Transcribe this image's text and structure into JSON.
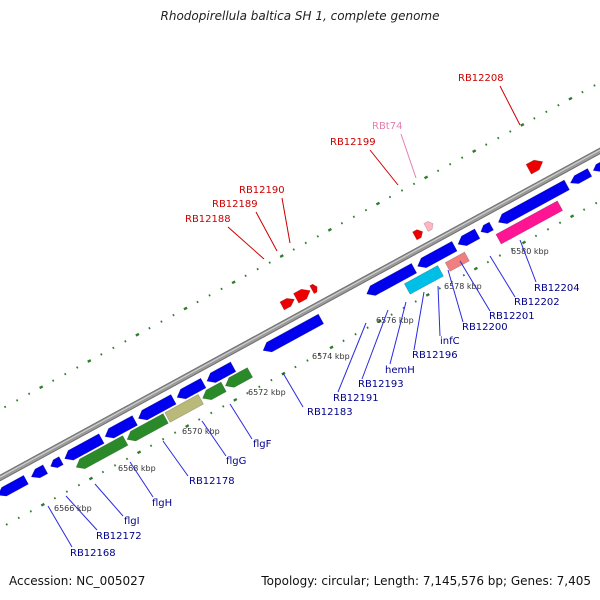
{
  "title": "Rhodopirellula baltica SH 1, complete genome",
  "footer": {
    "accession": "Accession: NC_005027",
    "stats": "Topology: circular; Length: 7,145,576 bp; Genes: 7,405"
  },
  "colors": {
    "backbone": "#9a9a9a",
    "dots": "#2e7d2e",
    "label_forward": "#cc0000",
    "label_reverse": "#00008b",
    "label_rna": "#e37fb0",
    "leader": "#2a2ae0",
    "leader_red": "#cc0000",
    "gene_blue": "#0000ee",
    "gene_green": "#2a8a2a",
    "gene_tan": "#b9b97a",
    "gene_red": "#ee0000",
    "gene_pink": "#ff1493",
    "gene_lightpink": "#ffb6c1",
    "gene_cyan": "#00bfe6",
    "gene_salmon": "#f08080"
  },
  "ticks": [
    {
      "label": "6566 kbp"
    },
    {
      "label": "6568 kbp"
    },
    {
      "label": "6570 kbp"
    },
    {
      "label": "6572 kbp"
    },
    {
      "label": "6574 kbp"
    },
    {
      "label": "6576 kbp"
    },
    {
      "label": "6578 kbp"
    },
    {
      "label": "6580 kbp"
    }
  ],
  "labels": [
    {
      "text": "RB12208",
      "kind": "forward"
    },
    {
      "text": "RBt74",
      "kind": "rna"
    },
    {
      "text": "RB12199",
      "kind": "forward"
    },
    {
      "text": "RB12190",
      "kind": "forward"
    },
    {
      "text": "RB12189",
      "kind": "forward"
    },
    {
      "text": "RB12188",
      "kind": "forward"
    },
    {
      "text": "RB12204",
      "kind": "reverse"
    },
    {
      "text": "RB12202",
      "kind": "reverse"
    },
    {
      "text": "RB12201",
      "kind": "reverse"
    },
    {
      "text": "RB12200",
      "kind": "reverse"
    },
    {
      "text": "infC",
      "kind": "reverse"
    },
    {
      "text": "RB12196",
      "kind": "reverse"
    },
    {
      "text": "hemH",
      "kind": "reverse"
    },
    {
      "text": "RB12193",
      "kind": "reverse"
    },
    {
      "text": "RB12191",
      "kind": "reverse"
    },
    {
      "text": "RB12183",
      "kind": "reverse"
    },
    {
      "text": "flgF",
      "kind": "reverse"
    },
    {
      "text": "flgG",
      "kind": "reverse"
    },
    {
      "text": "RB12178",
      "kind": "reverse"
    },
    {
      "text": "flgH",
      "kind": "reverse"
    },
    {
      "text": "flgI",
      "kind": "reverse"
    },
    {
      "text": "RB12172",
      "kind": "reverse"
    },
    {
      "text": "RB12168",
      "kind": "reverse"
    }
  ]
}
